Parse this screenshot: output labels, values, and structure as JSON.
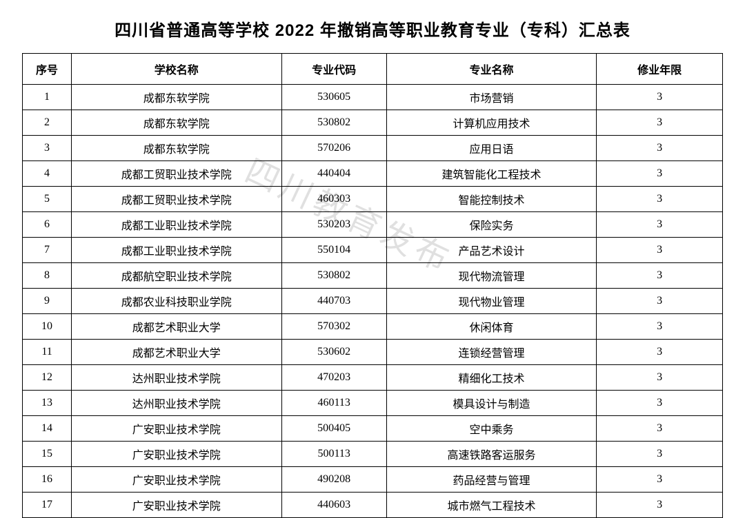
{
  "title": "四川省普通高等学校 2022 年撤销高等职业教育专业（专科）汇总表",
  "watermark": "四川教育发布",
  "table": {
    "columns": [
      "序号",
      "学校名称",
      "专业代码",
      "专业名称",
      "修业年限"
    ],
    "col_widths_pct": [
      7,
      30,
      15,
      30,
      18
    ],
    "header_fontsize": 16,
    "cell_fontsize": 16,
    "border_color": "#000000",
    "background_color": "#ffffff",
    "rows": [
      [
        "1",
        "成都东软学院",
        "530605",
        "市场营销",
        "3"
      ],
      [
        "2",
        "成都东软学院",
        "530802",
        "计算机应用技术",
        "3"
      ],
      [
        "3",
        "成都东软学院",
        "570206",
        "应用日语",
        "3"
      ],
      [
        "4",
        "成都工贸职业技术学院",
        "440404",
        "建筑智能化工程技术",
        "3"
      ],
      [
        "5",
        "成都工贸职业技术学院",
        "460303",
        "智能控制技术",
        "3"
      ],
      [
        "6",
        "成都工业职业技术学院",
        "530203",
        "保险实务",
        "3"
      ],
      [
        "7",
        "成都工业职业技术学院",
        "550104",
        "产品艺术设计",
        "3"
      ],
      [
        "8",
        "成都航空职业技术学院",
        "530802",
        "现代物流管理",
        "3"
      ],
      [
        "9",
        "成都农业科技职业学院",
        "440703",
        "现代物业管理",
        "3"
      ],
      [
        "10",
        "成都艺术职业大学",
        "570302",
        "休闲体育",
        "3"
      ],
      [
        "11",
        "成都艺术职业大学",
        "530602",
        "连锁经营管理",
        "3"
      ],
      [
        "12",
        "达州职业技术学院",
        "470203",
        "精细化工技术",
        "3"
      ],
      [
        "13",
        "达州职业技术学院",
        "460113",
        "模具设计与制造",
        "3"
      ],
      [
        "14",
        "广安职业技术学院",
        "500405",
        "空中乘务",
        "3"
      ],
      [
        "15",
        "广安职业技术学院",
        "500113",
        "高速铁路客运服务",
        "3"
      ],
      [
        "16",
        "广安职业技术学院",
        "490208",
        "药品经营与管理",
        "3"
      ],
      [
        "17",
        "广安职业技术学院",
        "440603",
        "城市燃气工程技术",
        "3"
      ]
    ]
  },
  "title_style": {
    "fontsize": 24,
    "font_weight": "bold",
    "color": "#000000"
  },
  "watermark_style": {
    "fontsize": 48,
    "color_rgba": "rgba(0,0,0,0.12)",
    "rotation_deg": 25
  }
}
